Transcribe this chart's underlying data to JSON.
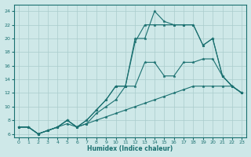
{
  "title": "",
  "xlabel": "Humidex (Indice chaleur)",
  "bg_color": "#cee8e8",
  "line_color": "#1a7070",
  "grid_color": "#aacccc",
  "xlim": [
    -0.5,
    23.5
  ],
  "ylim": [
    5.5,
    25
  ],
  "xticks": [
    0,
    1,
    2,
    3,
    4,
    5,
    6,
    7,
    8,
    9,
    10,
    11,
    12,
    13,
    14,
    15,
    16,
    17,
    18,
    19,
    20,
    21,
    22,
    23
  ],
  "yticks": [
    6,
    8,
    10,
    12,
    14,
    16,
    18,
    20,
    22,
    24
  ],
  "series": [
    {
      "x": [
        0,
        1,
        2,
        3,
        4,
        5,
        6,
        7,
        8,
        9,
        10,
        11,
        12,
        13,
        14,
        15,
        16,
        17,
        18,
        19,
        20,
        21,
        22,
        23
      ],
      "y": [
        7,
        7,
        6,
        6.5,
        7,
        8,
        7,
        8,
        9.5,
        11,
        13,
        13,
        20,
        20,
        24,
        22.5,
        22,
        22,
        22,
        19,
        20,
        14.5,
        13,
        12
      ]
    },
    {
      "x": [
        0,
        1,
        2,
        3,
        4,
        5,
        6,
        7,
        8,
        9,
        10,
        11,
        12,
        13,
        14,
        15,
        16,
        17,
        18,
        19,
        20,
        21,
        22,
        23
      ],
      "y": [
        7,
        7,
        6,
        6.5,
        7,
        8,
        7,
        8,
        9.5,
        11,
        13,
        13,
        19.5,
        22,
        22,
        22,
        22,
        22,
        22,
        19,
        20,
        14.5,
        13,
        12
      ]
    },
    {
      "x": [
        0,
        1,
        2,
        3,
        4,
        5,
        6,
        7,
        8,
        9,
        10,
        11,
        12,
        13,
        14,
        15,
        16,
        17,
        18,
        19,
        20,
        21,
        22,
        23
      ],
      "y": [
        7,
        7,
        6,
        6.5,
        7,
        8,
        7,
        7.5,
        9,
        10,
        11,
        13,
        13,
        16.5,
        16.5,
        14.5,
        14.5,
        16.5,
        16.5,
        17,
        17,
        14.5,
        13,
        12
      ]
    },
    {
      "x": [
        0,
        1,
        2,
        3,
        4,
        5,
        6,
        7,
        8,
        9,
        10,
        11,
        12,
        13,
        14,
        15,
        16,
        17,
        18,
        19,
        20,
        21,
        22,
        23
      ],
      "y": [
        7,
        7,
        6,
        6.5,
        7,
        7.5,
        7,
        7.5,
        8,
        8.5,
        9,
        9.5,
        10,
        10.5,
        11,
        11.5,
        12,
        12.5,
        13,
        13,
        13,
        13,
        13,
        12
      ]
    }
  ]
}
